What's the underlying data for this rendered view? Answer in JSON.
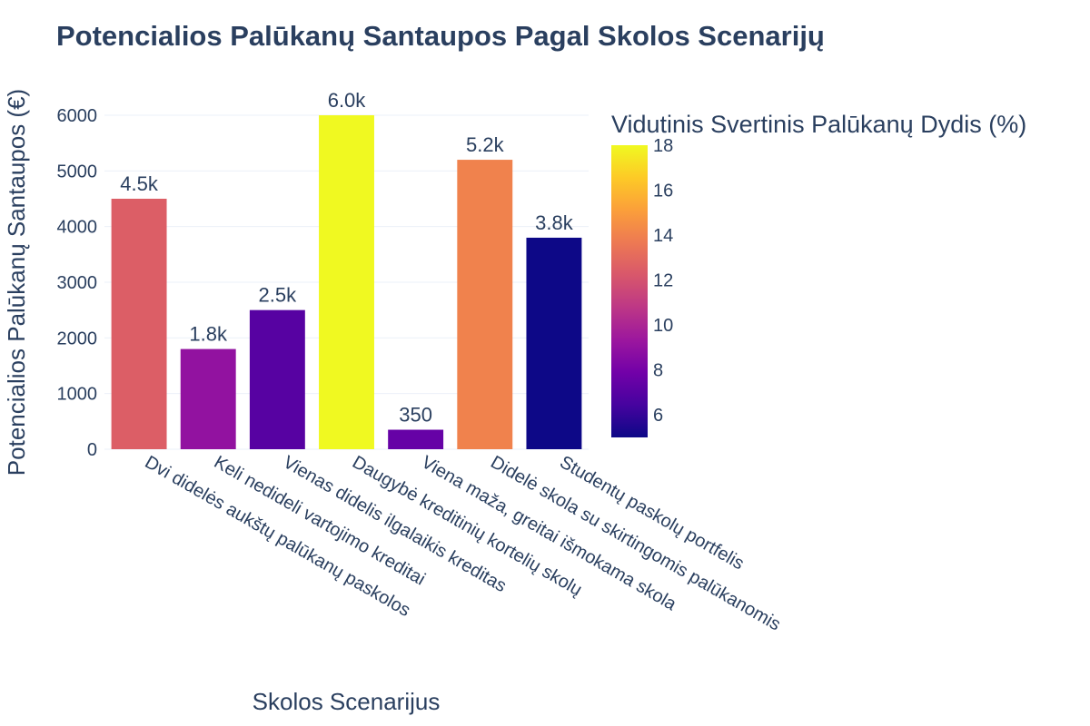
{
  "chart_data": {
    "type": "bar",
    "title": "Potencialios Palūkanų Santaupos Pagal Skolos Scenarijų",
    "xlabel": "Skolos Scenarijus",
    "ylabel": "Potencialios Palūkanų Santaupos (€)",
    "ylim": [
      0,
      6000
    ],
    "yticks": [
      0,
      1000,
      2000,
      3000,
      4000,
      5000,
      6000
    ],
    "grid": true,
    "categories": [
      "Dvi didelės aukštų palūkanų paskolos",
      "Keli nedideli vartojimo kreditai",
      "Vienas didelis ilgalaikis kreditas",
      "Daugybė kreditinių kortelių skolų",
      "Viena maža, greitai išmokama skola",
      "Didelė skola su skirtingomis palūkanomis",
      "Studentų paskolų portfelis"
    ],
    "values": [
      4500,
      1800,
      2500,
      6000,
      350,
      5200,
      3800
    ],
    "data_labels": [
      "4.5k",
      "1.8k",
      "2.5k",
      "6.0k",
      "350",
      "5.2k",
      "3.8k"
    ],
    "color_values": [
      12.5,
      9.0,
      7.0,
      18.0,
      7.5,
      14.0,
      5.0
    ],
    "colorbar": {
      "title": "Vidutinis Svertinis Palūkanų Dydis (%)",
      "range": [
        5,
        18
      ],
      "ticks": [
        6,
        8,
        10,
        12,
        14,
        16,
        18
      ],
      "colorscale": [
        "#0d0887",
        "#46039f",
        "#7201a8",
        "#9c179e",
        "#bd3786",
        "#d8576b",
        "#ed7953",
        "#fb9f3a",
        "#fdca26",
        "#f0f921"
      ]
    }
  }
}
